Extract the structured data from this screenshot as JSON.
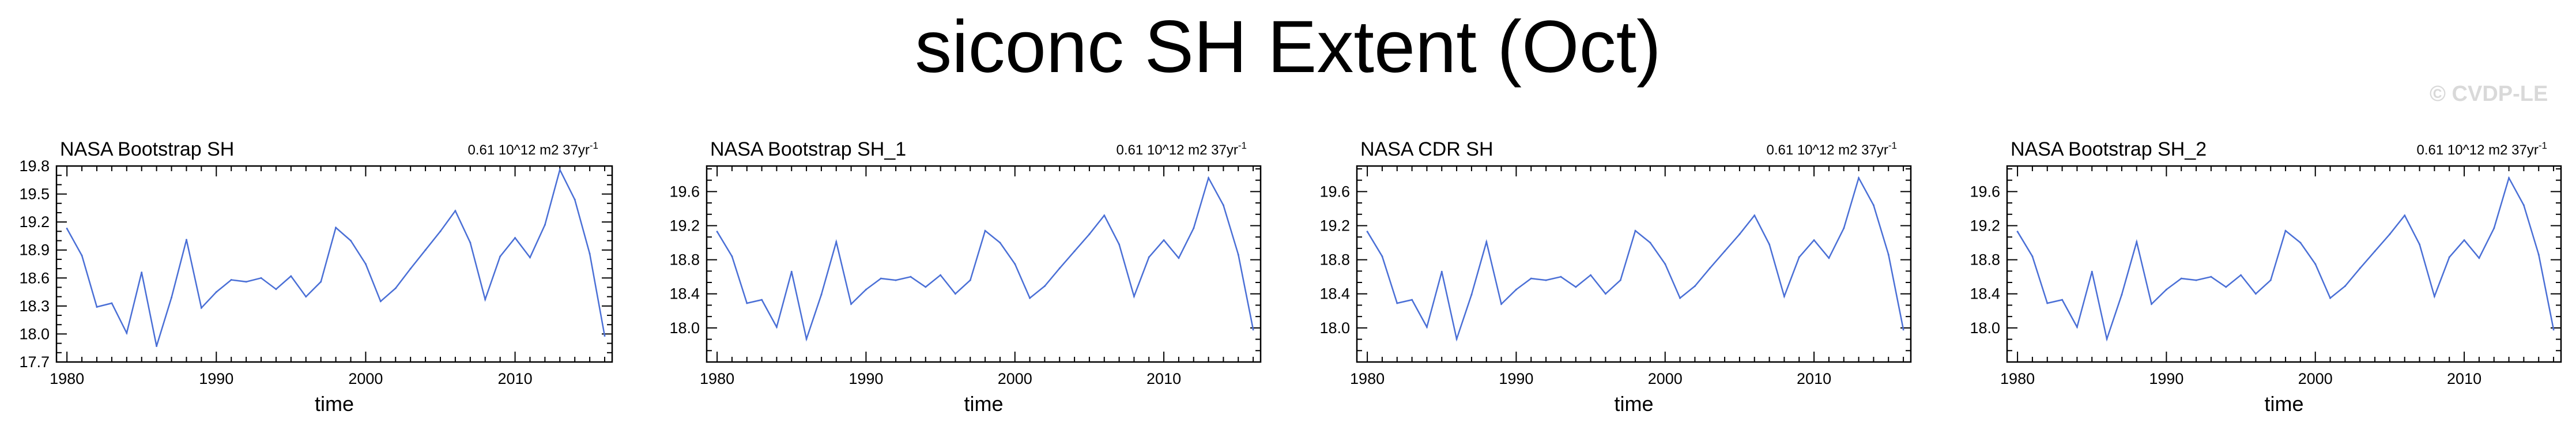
{
  "title": "siconc SH Extent (Oct)",
  "watermark": "© CVDP-LE",
  "chart_data": [
    {
      "type": "line",
      "title": "NASA Bootstrap SH",
      "info": "0.61 10^12 m2 37yr",
      "info_sup": "-1",
      "xlabel": "time",
      "ylabel": "",
      "xlim": [
        1979.3,
        2016.5
      ],
      "ylim": [
        17.7,
        19.8
      ],
      "xticks": [
        1980,
        1990,
        2000,
        2010
      ],
      "yticks": [
        17.7,
        18.0,
        18.3,
        18.6,
        18.9,
        19.2,
        19.5,
        19.8
      ],
      "ytick_labels": [
        "17.7",
        "18.0",
        "18.3",
        "18.6",
        "18.9",
        "19.2",
        "19.5",
        "19.8"
      ],
      "line_color": "#4a6fd6",
      "x": [
        1980,
        1981,
        1982,
        1983,
        1984,
        1985,
        1986,
        1987,
        1988,
        1989,
        1990,
        1991,
        1992,
        1993,
        1994,
        1995,
        1996,
        1997,
        1998,
        1999,
        2000,
        2001,
        2002,
        2003,
        2004,
        2005,
        2006,
        2007,
        2008,
        2009,
        2010,
        2011,
        2012,
        2013,
        2014,
        2015,
        2016
      ],
      "y": [
        19.13,
        18.84,
        18.29,
        18.33,
        18.01,
        18.66,
        17.87,
        18.39,
        19.01,
        18.28,
        18.45,
        18.58,
        18.56,
        18.6,
        18.48,
        18.62,
        18.4,
        18.56,
        19.14,
        19.0,
        18.75,
        18.35,
        18.49,
        18.7,
        18.9,
        19.1,
        19.32,
        18.98,
        18.37,
        18.83,
        19.03,
        18.82,
        19.17,
        19.76,
        19.44,
        18.86,
        17.98
      ]
    },
    {
      "type": "line",
      "title": "NASA Bootstrap SH_1",
      "info": "0.61 10^12 m2 37yr",
      "info_sup": "-1",
      "xlabel": "time",
      "ylabel": "",
      "xlim": [
        1979.3,
        2016.5
      ],
      "ylim": [
        17.6,
        19.9
      ],
      "xticks": [
        1980,
        1990,
        2000,
        2010
      ],
      "yticks": [
        18.0,
        18.4,
        18.8,
        19.2,
        19.6
      ],
      "ytick_labels": [
        "18.0",
        "18.4",
        "18.8",
        "19.2",
        "19.6"
      ],
      "line_color": "#4a6fd6",
      "x": [
        1980,
        1981,
        1982,
        1983,
        1984,
        1985,
        1986,
        1987,
        1988,
        1989,
        1990,
        1991,
        1992,
        1993,
        1994,
        1995,
        1996,
        1997,
        1998,
        1999,
        2000,
        2001,
        2002,
        2003,
        2004,
        2005,
        2006,
        2007,
        2008,
        2009,
        2010,
        2011,
        2012,
        2013,
        2014,
        2015,
        2016
      ],
      "y": [
        19.13,
        18.84,
        18.29,
        18.33,
        18.01,
        18.66,
        17.87,
        18.39,
        19.01,
        18.28,
        18.45,
        18.58,
        18.56,
        18.6,
        18.48,
        18.62,
        18.4,
        18.56,
        19.14,
        19.0,
        18.75,
        18.35,
        18.49,
        18.7,
        18.9,
        19.1,
        19.32,
        18.98,
        18.37,
        18.83,
        19.03,
        18.82,
        19.17,
        19.76,
        19.44,
        18.86,
        17.98
      ]
    },
    {
      "type": "line",
      "title": "NASA CDR SH",
      "info": "0.61 10^12 m2 37yr",
      "info_sup": "-1",
      "xlabel": "time",
      "ylabel": "",
      "xlim": [
        1979.3,
        2016.5
      ],
      "ylim": [
        17.6,
        19.9
      ],
      "xticks": [
        1980,
        1990,
        2000,
        2010
      ],
      "yticks": [
        18.0,
        18.4,
        18.8,
        19.2,
        19.6
      ],
      "ytick_labels": [
        "18.0",
        "18.4",
        "18.8",
        "19.2",
        "19.6"
      ],
      "line_color": "#4a6fd6",
      "x": [
        1980,
        1981,
        1982,
        1983,
        1984,
        1985,
        1986,
        1987,
        1988,
        1989,
        1990,
        1991,
        1992,
        1993,
        1994,
        1995,
        1996,
        1997,
        1998,
        1999,
        2000,
        2001,
        2002,
        2003,
        2004,
        2005,
        2006,
        2007,
        2008,
        2009,
        2010,
        2011,
        2012,
        2013,
        2014,
        2015,
        2016
      ],
      "y": [
        19.13,
        18.84,
        18.29,
        18.33,
        18.01,
        18.66,
        17.87,
        18.39,
        19.01,
        18.28,
        18.45,
        18.58,
        18.56,
        18.6,
        18.48,
        18.62,
        18.4,
        18.56,
        19.14,
        19.0,
        18.75,
        18.35,
        18.49,
        18.7,
        18.9,
        19.1,
        19.32,
        18.98,
        18.37,
        18.83,
        19.03,
        18.82,
        19.17,
        19.76,
        19.44,
        18.86,
        17.98
      ]
    },
    {
      "type": "line",
      "title": "NASA Bootstrap SH_2",
      "info": "0.61 10^12 m2 37yr",
      "info_sup": "-1",
      "xlabel": "time",
      "ylabel": "",
      "xlim": [
        1979.3,
        2016.5
      ],
      "ylim": [
        17.6,
        19.9
      ],
      "xticks": [
        1980,
        1990,
        2000,
        2010
      ],
      "yticks": [
        18.0,
        18.4,
        18.8,
        19.2,
        19.6
      ],
      "ytick_labels": [
        "18.0",
        "18.4",
        "18.8",
        "19.2",
        "19.6"
      ],
      "line_color": "#4a6fd6",
      "x": [
        1980,
        1981,
        1982,
        1983,
        1984,
        1985,
        1986,
        1987,
        1988,
        1989,
        1990,
        1991,
        1992,
        1993,
        1994,
        1995,
        1996,
        1997,
        1998,
        1999,
        2000,
        2001,
        2002,
        2003,
        2004,
        2005,
        2006,
        2007,
        2008,
        2009,
        2010,
        2011,
        2012,
        2013,
        2014,
        2015,
        2016
      ],
      "y": [
        19.13,
        18.84,
        18.29,
        18.33,
        18.01,
        18.66,
        17.87,
        18.39,
        19.01,
        18.28,
        18.45,
        18.58,
        18.56,
        18.6,
        18.48,
        18.62,
        18.4,
        18.56,
        19.14,
        19.0,
        18.75,
        18.35,
        18.49,
        18.7,
        18.9,
        19.1,
        19.32,
        18.98,
        18.37,
        18.83,
        19.03,
        18.82,
        19.17,
        19.76,
        19.44,
        18.86,
        17.98
      ]
    }
  ]
}
